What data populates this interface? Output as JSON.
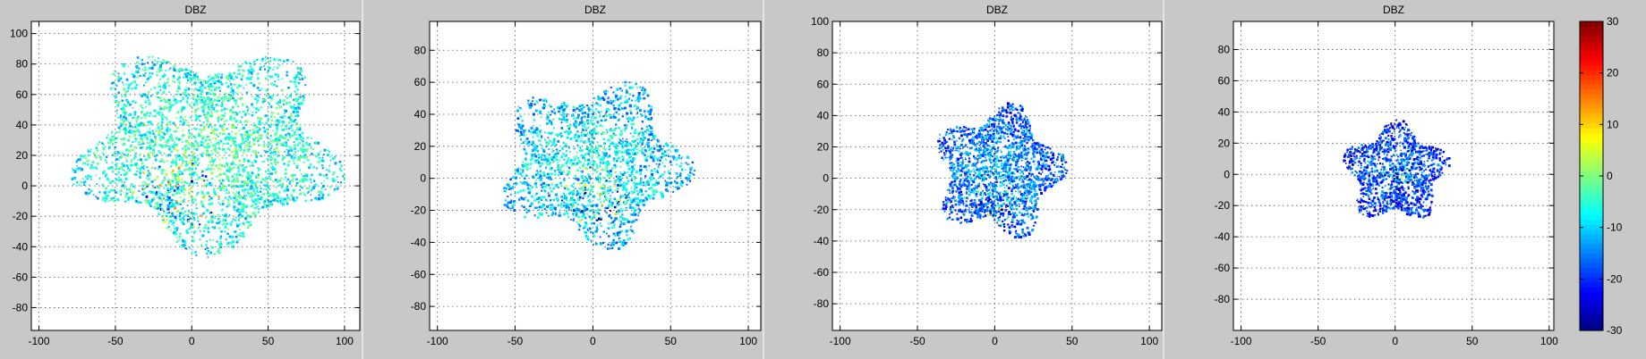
{
  "colors": {
    "figure_bg": "#c8c8c8",
    "axes_bg": "#ffffff"
  },
  "chart_data": [
    {
      "type": "heatmap",
      "title": "DBZ",
      "xlim": [
        -105,
        110
      ],
      "ylim": [
        -95,
        108
      ],
      "grid": true,
      "xticks": [
        -100,
        -50,
        0,
        50,
        100
      ],
      "yticks": [
        -80,
        -60,
        -40,
        -20,
        0,
        20,
        40,
        60,
        80,
        100
      ],
      "echo": {
        "center_x": 10,
        "center_y": 25,
        "radius_x": 85,
        "radius_y": 65,
        "mean_dbz": -2,
        "core_x": -10,
        "core_y": -5
      }
    },
    {
      "type": "heatmap",
      "title": "DBZ",
      "xlim": [
        -105,
        108
      ],
      "ylim": [
        -95,
        98
      ],
      "grid": true,
      "xticks": [
        -100,
        -50,
        0,
        50,
        100
      ],
      "yticks": [
        -80,
        -60,
        -40,
        -20,
        0,
        20,
        40,
        60,
        80
      ],
      "echo": {
        "center_x": 0,
        "center_y": 10,
        "radius_x": 60,
        "radius_y": 50,
        "mean_dbz": -6,
        "core_x": 0,
        "core_y": -10
      }
    },
    {
      "type": "heatmap",
      "title": "DBZ",
      "xlim": [
        -105,
        108
      ],
      "ylim": [
        -97,
        100
      ],
      "grid": true,
      "xticks": [
        -100,
        -50,
        0,
        50,
        100
      ],
      "yticks": [
        -80,
        -60,
        -40,
        -20,
        0,
        20,
        40,
        60,
        80,
        100
      ],
      "echo": {
        "center_x": 2,
        "center_y": 5,
        "radius_x": 41,
        "radius_y": 41,
        "mean_dbz": -12,
        "core_x": 0,
        "core_y": -10
      }
    },
    {
      "type": "heatmap",
      "title": "DBZ",
      "xlim": [
        -105,
        103
      ],
      "ylim": [
        -100,
        98
      ],
      "grid": true,
      "xticks": [
        -100,
        -50,
        0,
        50,
        100
      ],
      "yticks": [
        -80,
        -60,
        -40,
        -20,
        0,
        20,
        40,
        60,
        80
      ],
      "echo": {
        "center_x": 0,
        "center_y": 2,
        "radius_x": 33,
        "radius_y": 31,
        "mean_dbz": -15,
        "core_x": 0,
        "core_y": 0
      }
    }
  ],
  "colorbar": {
    "clim": [
      -30,
      30
    ],
    "ticks": [
      -30,
      -20,
      -10,
      0,
      10,
      20,
      30
    ],
    "colormap": "jet"
  }
}
